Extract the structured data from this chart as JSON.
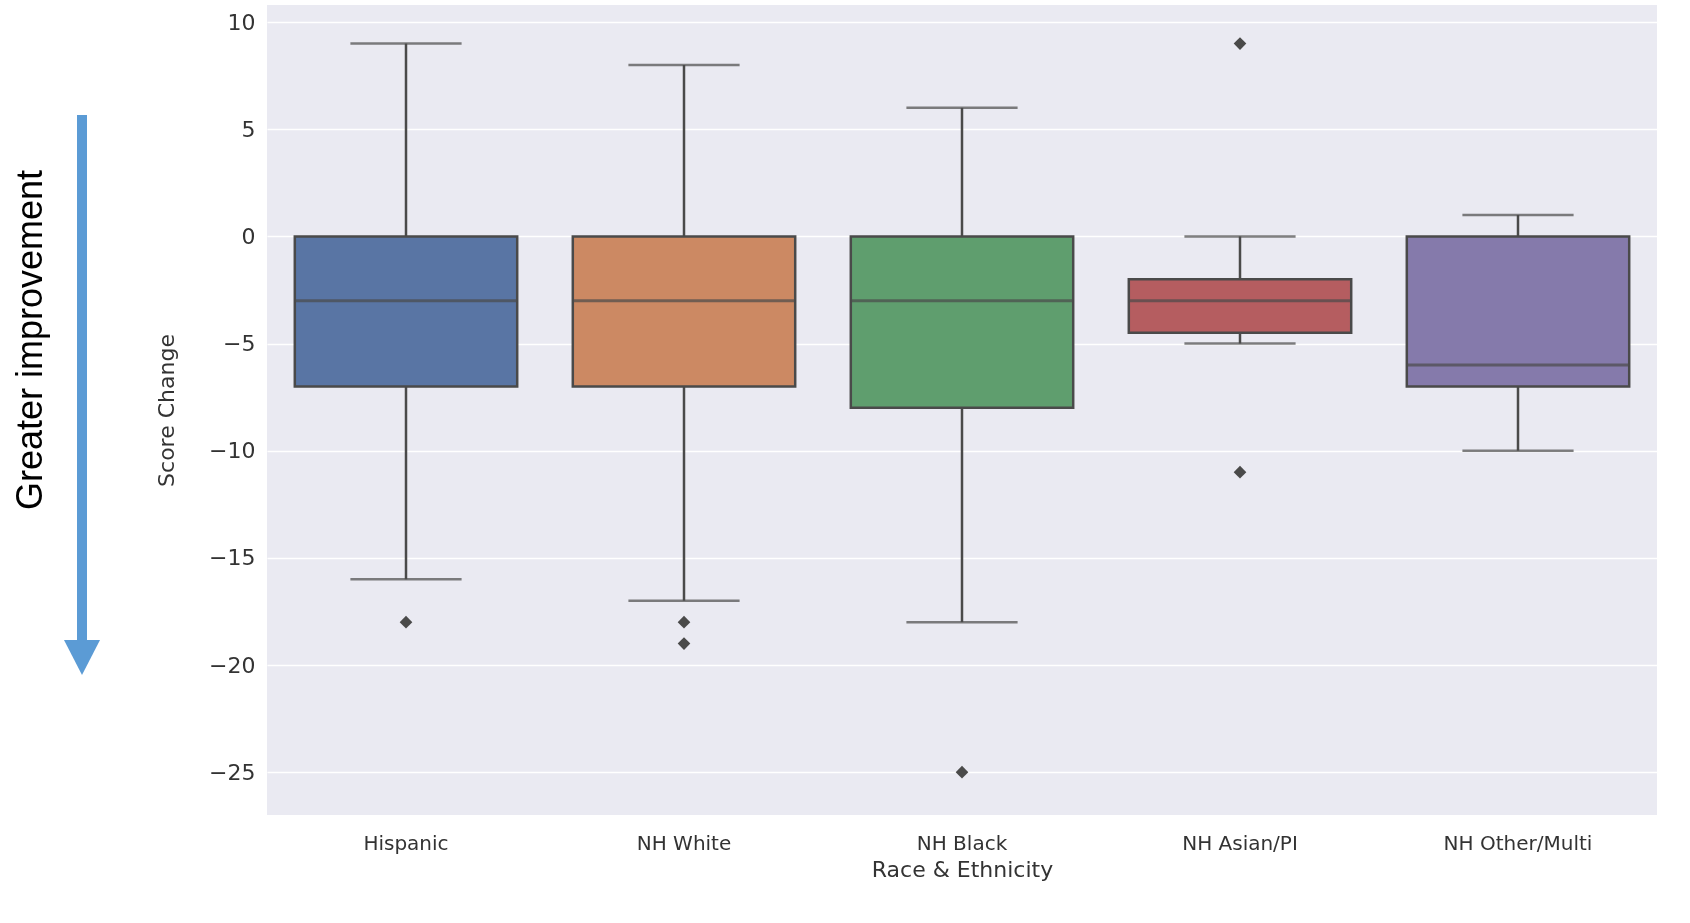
{
  "chart_data": {
    "type": "box",
    "xlabel": "Race & Ethnicity",
    "ylabel": "Score Change",
    "categories": [
      "Hispanic",
      "NH White",
      "NH Black",
      "NH Asian/PI",
      "NH Other/Multi"
    ],
    "colors": [
      "#5975a4",
      "#cc8963",
      "#5f9e6e",
      "#b55d60",
      "#857aab"
    ],
    "boxes": [
      {
        "low": -16,
        "q1": -7,
        "median": -3,
        "q3": 0,
        "high": 9,
        "outliers": [
          -18
        ]
      },
      {
        "low": -17,
        "q1": -7,
        "median": -3,
        "q3": 0,
        "high": 8,
        "outliers": [
          -18,
          -19
        ]
      },
      {
        "low": -18,
        "q1": -8,
        "median": -3,
        "q3": 0,
        "high": 6,
        "outliers": [
          -25
        ]
      },
      {
        "low": -5,
        "q1": -4.5,
        "median": -3,
        "q3": -2,
        "high": 0,
        "outliers": [
          9,
          -11
        ]
      },
      {
        "low": -10,
        "q1": -7,
        "median": -6,
        "q3": 0,
        "high": 1
      }
    ],
    "ylim": [
      -27,
      10.8
    ],
    "yticks": [
      -25,
      -20,
      -15,
      -10,
      -5,
      0,
      5,
      10
    ],
    "grid": "y",
    "marker": "diamond",
    "annotations": [
      "Greater improvement"
    ]
  }
}
